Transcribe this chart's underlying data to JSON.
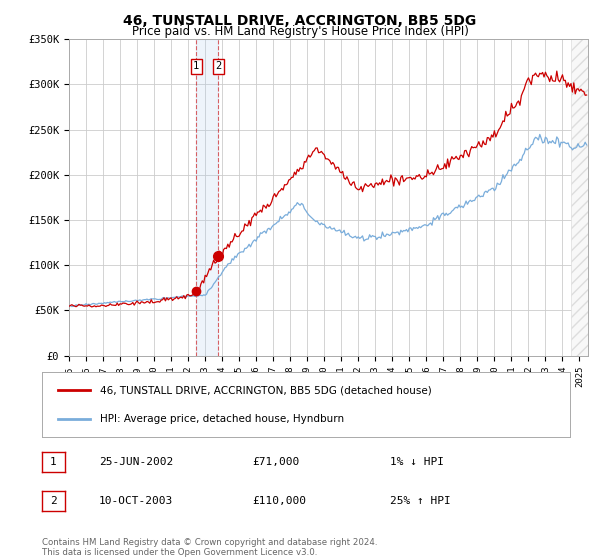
{
  "title": "46, TUNSTALL DRIVE, ACCRINGTON, BB5 5DG",
  "subtitle": "Price paid vs. HM Land Registry's House Price Index (HPI)",
  "title_fontsize": 10,
  "subtitle_fontsize": 8.5,
  "background_color": "#ffffff",
  "plot_bg_color": "#ffffff",
  "grid_color": "#cccccc",
  "ylim": [
    0,
    350000
  ],
  "yticks": [
    0,
    50000,
    100000,
    150000,
    200000,
    250000,
    300000,
    350000
  ],
  "ytick_labels": [
    "£0",
    "£50K",
    "£100K",
    "£150K",
    "£200K",
    "£250K",
    "£300K",
    "£350K"
  ],
  "xlim_start": 1995.0,
  "xlim_end": 2025.5,
  "transaction1": {
    "date_num": 2002.48,
    "price": 71000,
    "label": "1",
    "date_str": "25-JUN-2002",
    "price_str": "£71,000",
    "hpi_str": "1% ↓ HPI"
  },
  "transaction2": {
    "date_num": 2003.78,
    "price": 110000,
    "label": "2",
    "date_str": "10-OCT-2003",
    "price_str": "£110,000",
    "hpi_str": "25% ↑ HPI"
  },
  "red_line_color": "#cc0000",
  "blue_line_color": "#7aaddb",
  "legend_red_label": "46, TUNSTALL DRIVE, ACCRINGTON, BB5 5DG (detached house)",
  "legend_blue_label": "HPI: Average price, detached house, Hyndburn",
  "footer_text": "Contains HM Land Registry data © Crown copyright and database right 2024.\nThis data is licensed under the Open Government Licence v3.0.",
  "hatch_start": 2024.5
}
